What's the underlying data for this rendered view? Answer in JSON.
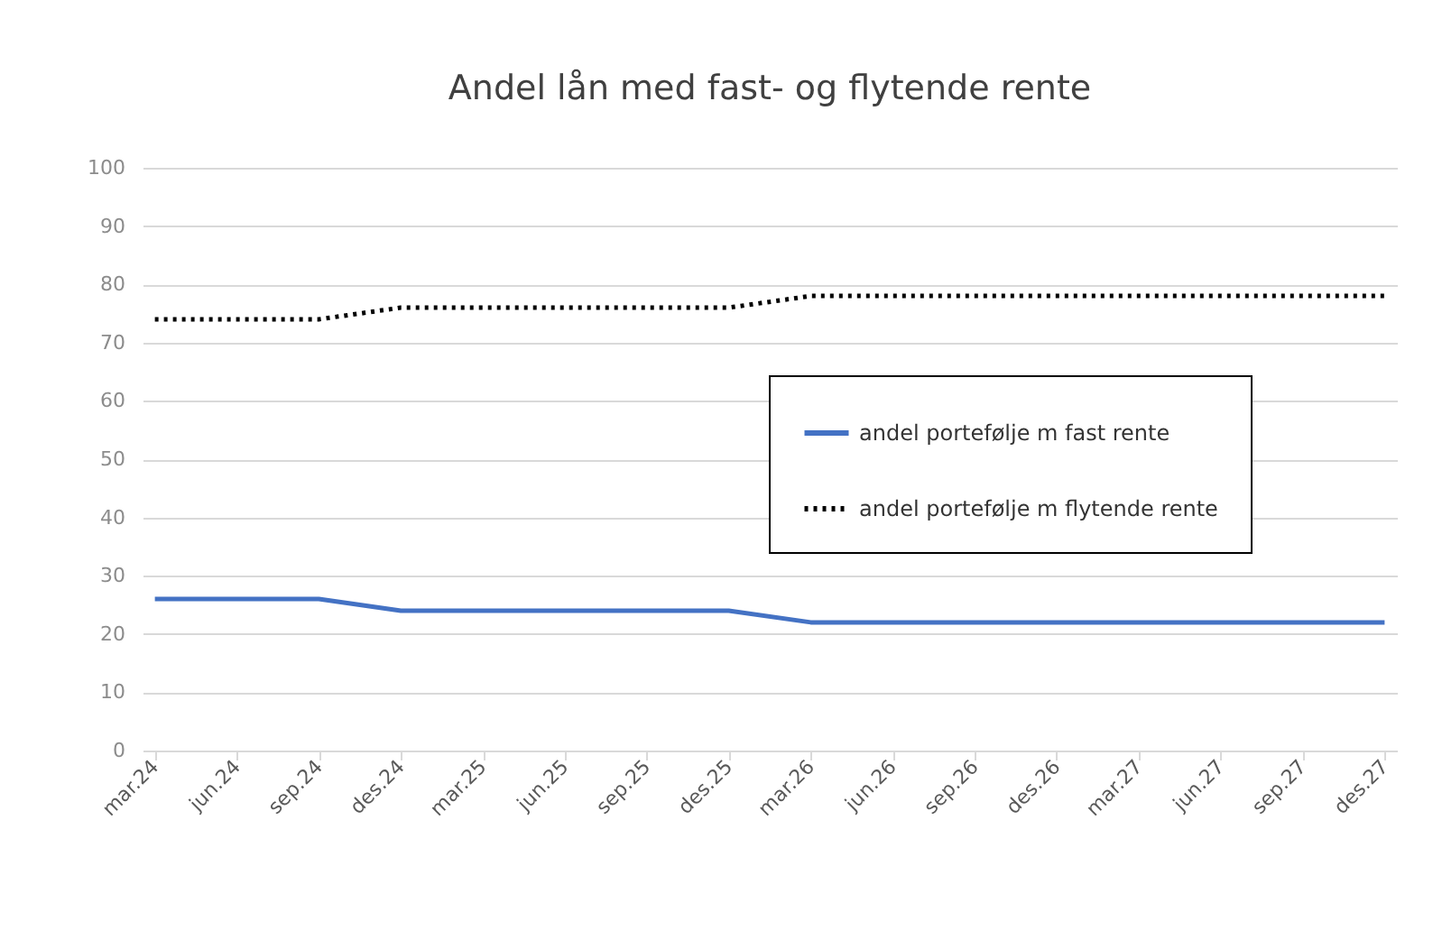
{
  "chart_data": {
    "type": "line",
    "title": "Andel lån med fast- og flytende rente",
    "categories": [
      "mar.24",
      "jun.24",
      "sep.24",
      "des.24",
      "mar.25",
      "jun.25",
      "sep.25",
      "des.25",
      "mar.26",
      "jun.26",
      "sep.26",
      "des.26",
      "mar.27",
      "jun.27",
      "sep.27",
      "des.27"
    ],
    "series": [
      {
        "name": "andel portefølje m fast rente",
        "color": "#4472c4",
        "line_style": "solid",
        "values": [
          26,
          26,
          26,
          24,
          24,
          24,
          24,
          24,
          22,
          22,
          22,
          22,
          22,
          22,
          22,
          22
        ]
      },
      {
        "name": "andel portefølje m flytende rente",
        "color": "#000000",
        "line_style": "dotted",
        "values": [
          74,
          74,
          74,
          76,
          76,
          76,
          76,
          76,
          78,
          78,
          78,
          78,
          78,
          78,
          78,
          78
        ]
      }
    ],
    "ylim": [
      0,
      100
    ],
    "yticks": [
      0,
      10,
      20,
      30,
      40,
      50,
      60,
      70,
      80,
      90,
      100
    ],
    "grid": "y",
    "legend": "right",
    "marker": "none"
  }
}
